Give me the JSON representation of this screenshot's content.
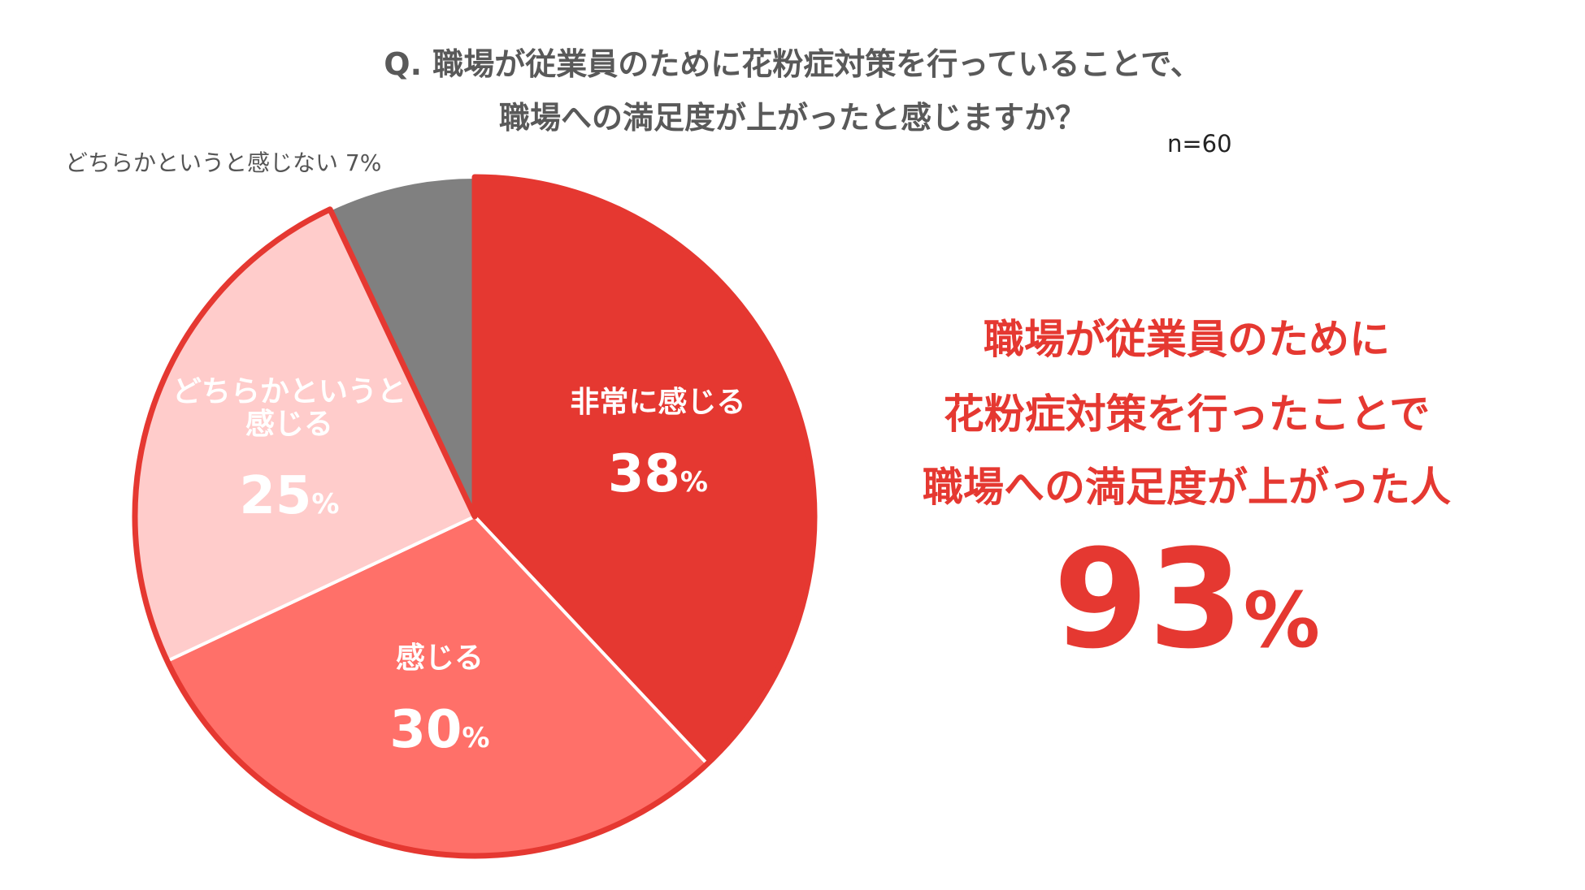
{
  "question": {
    "line1": "Q.  職場が従業員のために花粉症対策を行っていることで、",
    "line2": "職場への満足度が上がったと感じますか？"
  },
  "sample_size": "n=60",
  "callout": {
    "line1": "職場が従業員のために",
    "line2": "花粉症対策を行ったことで",
    "line3": "職場への満足度が上がった人",
    "value": "93",
    "unit": "%"
  },
  "chart_data": {
    "type": "pie",
    "unit": "%",
    "slices": [
      {
        "label": "非常に感じる",
        "label_lines": [
          "非常に感じる"
        ],
        "value": 38,
        "color": "#e53831",
        "label_color": "#ffffff"
      },
      {
        "label": "感じる",
        "label_lines": [
          "感じる"
        ],
        "value": 30,
        "color": "#ff7069",
        "label_color": "#ffffff"
      },
      {
        "label": "どちらかというと感じる",
        "label_lines": [
          "どちらかというと",
          "感じる"
        ],
        "value": 25,
        "color": "#ffcccb",
        "label_color": "#ffffff"
      },
      {
        "label": "どちらかというと感じない",
        "label_lines": [
          "どちらかというと感じない"
        ],
        "value": 7,
        "color": "#808080",
        "label_color": "#555555"
      }
    ],
    "highlight_outline_color": "#e53831"
  }
}
